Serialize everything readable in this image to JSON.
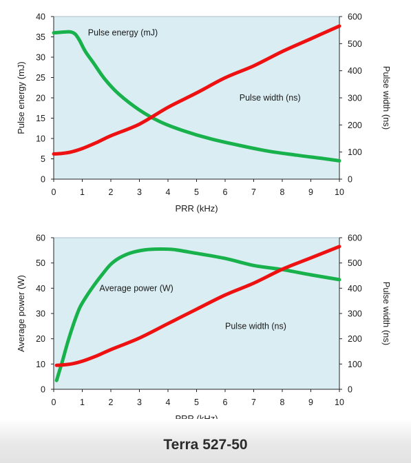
{
  "caption": "Terra 527-50",
  "colors": {
    "plot_bg": "#d9edf3",
    "energy_power": "#18b14b",
    "width": "#ee1111",
    "axis": "#222222"
  },
  "chart_data": [
    {
      "type": "line",
      "xlabel": "PRR (kHz)",
      "ylabel": "Pulse energy (mJ)",
      "y2label": "Pulse width (ns)",
      "xlim": [
        0,
        10
      ],
      "ylim": [
        0,
        40
      ],
      "y2lim": [
        0,
        600
      ],
      "xticks": [
        0,
        1,
        2,
        3,
        4,
        5,
        6,
        7,
        8,
        9,
        10
      ],
      "yticks": [
        0,
        5,
        10,
        15,
        20,
        25,
        30,
        35,
        40
      ],
      "y2ticks": [
        0,
        100,
        200,
        300,
        400,
        500,
        600
      ],
      "grid": false,
      "series": [
        {
          "name": "Pulse energy (mJ)",
          "axis": "left",
          "label_at": [
            1.2,
            36
          ],
          "x": [
            0,
            0.2,
            0.4,
            0.6,
            0.75,
            0.9,
            1.1,
            1.4,
            1.8,
            2.3,
            3.0,
            3.7,
            4.5,
            5.5,
            6.5,
            7.5,
            8.5,
            9.5,
            10
          ],
          "y": [
            36,
            36.1,
            36.2,
            36.2,
            35.7,
            34.2,
            31.5,
            28.5,
            24.5,
            20.8,
            17.0,
            14.2,
            12.0,
            9.9,
            8.3,
            6.9,
            5.9,
            5.0,
            4.5
          ]
        },
        {
          "name": "Pulse width (ns)",
          "axis": "right",
          "label_at": [
            6.5,
            300
          ],
          "x": [
            0,
            0.3,
            0.6,
            1.0,
            1.5,
            2.0,
            3.0,
            4.0,
            5.0,
            6.0,
            7.0,
            8.0,
            9.0,
            10
          ],
          "y": [
            93,
            95,
            100,
            113,
            135,
            160,
            203,
            265,
            318,
            374,
            418,
            471,
            518,
            565
          ]
        }
      ]
    },
    {
      "type": "line",
      "xlabel": "PRR (kHz)",
      "ylabel": "Average power (W)",
      "y2label": "Pulse width (ns)",
      "xlim": [
        0,
        10
      ],
      "ylim": [
        0,
        60
      ],
      "y2lim": [
        0,
        600
      ],
      "xticks": [
        0,
        1,
        2,
        3,
        4,
        5,
        6,
        7,
        8,
        9,
        10
      ],
      "yticks": [
        0,
        10,
        20,
        30,
        40,
        50,
        60
      ],
      "y2ticks": [
        0,
        100,
        200,
        300,
        400,
        500,
        600
      ],
      "grid": false,
      "series": [
        {
          "name": "Average power (W)",
          "axis": "left",
          "label_at": [
            1.6,
            40
          ],
          "x": [
            0.1,
            0.3,
            0.5,
            0.7,
            0.9,
            1.1,
            1.4,
            1.7,
            2.0,
            2.3,
            2.7,
            3.2,
            3.7,
            4.2,
            5.0,
            6.0,
            7.0,
            8.0,
            9.0,
            10
          ],
          "y": [
            3.5,
            11,
            19,
            26,
            32,
            36,
            41,
            45.5,
            49.5,
            52,
            54,
            55.2,
            55.5,
            55.3,
            53.8,
            51.8,
            49.0,
            47.4,
            45.3,
            43.4
          ]
        },
        {
          "name": "Pulse width (ns)",
          "axis": "right",
          "label_at": [
            6.0,
            250
          ],
          "x": [
            0.1,
            0.4,
            0.7,
            1.0,
            1.5,
            2.0,
            3.0,
            4.0,
            5.0,
            6.0,
            7.0,
            8.0,
            9.0,
            10
          ],
          "y": [
            95,
            97,
            102,
            111,
            132,
            157,
            203,
            260,
            317,
            373,
            420,
            475,
            520,
            565
          ]
        }
      ]
    }
  ]
}
